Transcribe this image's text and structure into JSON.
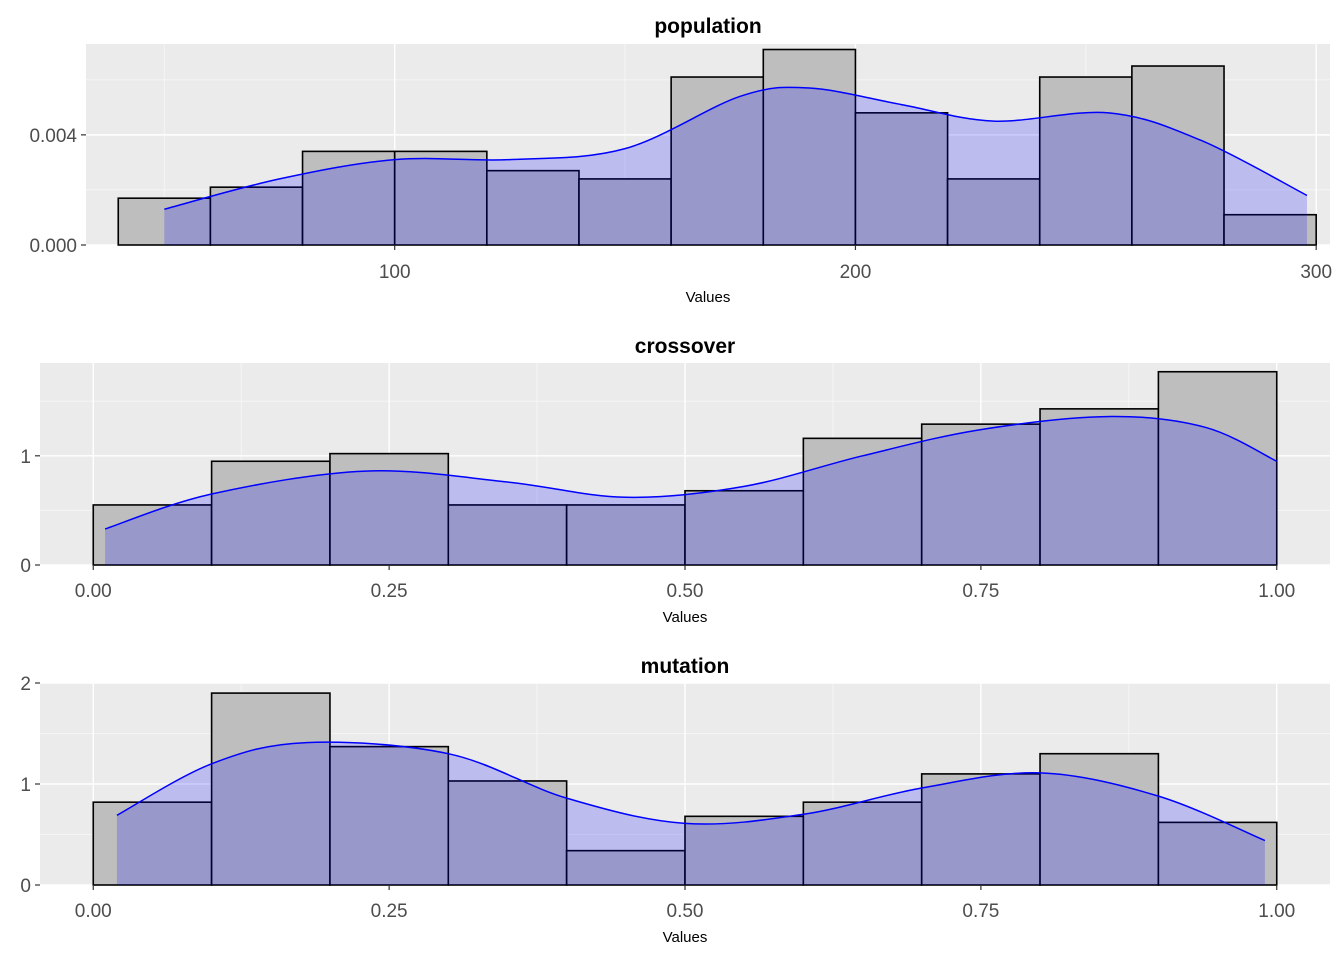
{
  "colors": {
    "panel_background": "#ebebeb",
    "grid_major": "#ffffff",
    "grid_minor": "#f5f5f5",
    "bar_fill": "#bebebe",
    "bar_stroke": "#000000",
    "density_fill": "#0000ff",
    "density_line": "#0000ff",
    "tick_text": "#4d4d4d"
  },
  "chart_data": [
    {
      "type": "histogram",
      "title": "population",
      "xlabel": "Values",
      "ylabel": "",
      "xlim": [
        33,
        303
      ],
      "ylim": [
        0,
        0.0073
      ],
      "grid": true,
      "xticks": [
        100,
        200,
        300
      ],
      "xtick_labels": [
        "100",
        "200",
        "300"
      ],
      "yticks": [
        0,
        0.004
      ],
      "ytick_labels": [
        "0.000",
        "0.004"
      ],
      "bin_edges": [
        40,
        60,
        80,
        100,
        120,
        140,
        160,
        180,
        200,
        220,
        240,
        260,
        280,
        300
      ],
      "values": [
        0.0017,
        0.0021,
        0.0034,
        0.0034,
        0.0027,
        0.0024,
        0.0061,
        0.0071,
        0.0048,
        0.0024,
        0.0061,
        0.0065,
        0.0011
      ],
      "density": {
        "x": [
          50,
          75,
          100,
          125,
          150,
          175,
          190,
          210,
          230,
          255,
          275,
          298
        ],
        "y": [
          0.0013,
          0.0024,
          0.0031,
          0.0031,
          0.0035,
          0.0054,
          0.0057,
          0.0051,
          0.0045,
          0.0048,
          0.0038,
          0.0018
        ]
      }
    },
    {
      "type": "histogram",
      "title": "crossover",
      "xlabel": "Values",
      "ylabel": "",
      "xlim": [
        -0.045,
        1.045
      ],
      "ylim": [
        0,
        1.85
      ],
      "grid": true,
      "xticks": [
        0,
        0.25,
        0.5,
        0.75,
        1
      ],
      "xtick_labels": [
        "0.00",
        "0.25",
        "0.50",
        "0.75",
        "1.00"
      ],
      "yticks": [
        0,
        1
      ],
      "ytick_labels": [
        "0",
        "1"
      ],
      "bin_edges": [
        0,
        0.1,
        0.2,
        0.3,
        0.4,
        0.5,
        0.6,
        0.7,
        0.8,
        0.9,
        1.0
      ],
      "values": [
        0.55,
        0.95,
        1.02,
        0.55,
        0.55,
        0.68,
        1.16,
        1.29,
        1.43,
        1.77
      ],
      "density": {
        "x": [
          0.01,
          0.1,
          0.23,
          0.35,
          0.45,
          0.55,
          0.65,
          0.75,
          0.86,
          0.94,
          1.0
        ],
        "y": [
          0.33,
          0.65,
          0.86,
          0.76,
          0.62,
          0.72,
          1.0,
          1.24,
          1.36,
          1.26,
          0.95
        ]
      }
    },
    {
      "type": "histogram",
      "title": "mutation",
      "xlabel": "Values",
      "ylabel": "",
      "xlim": [
        -0.045,
        1.045
      ],
      "ylim": [
        0,
        2.0
      ],
      "grid": true,
      "xticks": [
        0,
        0.25,
        0.5,
        0.75,
        1
      ],
      "xtick_labels": [
        "0.00",
        "0.25",
        "0.50",
        "0.75",
        "1.00"
      ],
      "yticks": [
        0,
        1,
        2
      ],
      "ytick_labels": [
        "0",
        "1",
        "2"
      ],
      "bin_edges": [
        0,
        0.1,
        0.2,
        0.3,
        0.4,
        0.5,
        0.6,
        0.7,
        0.8,
        0.9,
        1.0
      ],
      "values": [
        0.82,
        1.9,
        1.37,
        1.03,
        0.34,
        0.68,
        0.82,
        1.1,
        1.3,
        0.62
      ],
      "density": {
        "x": [
          0.02,
          0.1,
          0.18,
          0.3,
          0.4,
          0.5,
          0.6,
          0.7,
          0.8,
          0.9,
          0.99
        ],
        "y": [
          0.69,
          1.2,
          1.41,
          1.3,
          0.86,
          0.61,
          0.7,
          0.96,
          1.11,
          0.88,
          0.44
        ]
      }
    }
  ]
}
